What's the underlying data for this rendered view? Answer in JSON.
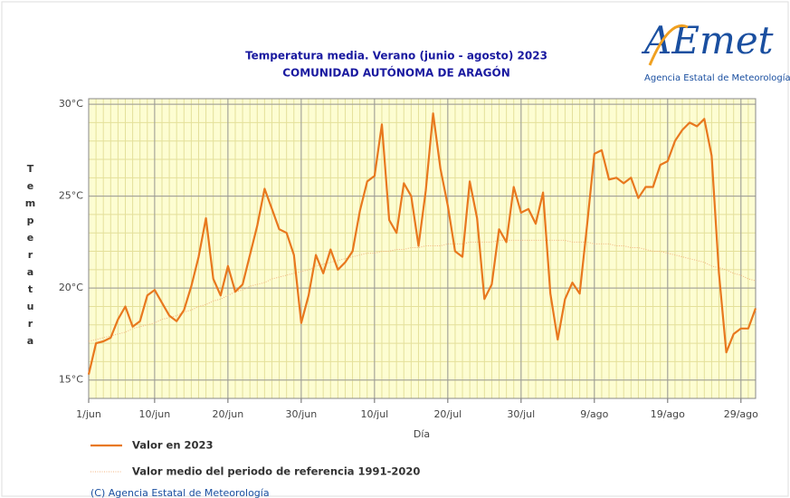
{
  "chart_data": {
    "type": "line",
    "title": "Temperatura media. Verano (junio - agosto) 2023",
    "subtitle": "COMUNIDAD AUTÓNOMA DE ARAGÓN",
    "x_label": "Día",
    "y_label": "Temperatura",
    "categories": [
      "1/jun",
      null,
      null,
      null,
      null,
      null,
      null,
      null,
      null,
      "10/jun",
      null,
      null,
      null,
      null,
      null,
      null,
      null,
      null,
      null,
      "20/jun",
      null,
      null,
      null,
      null,
      null,
      null,
      null,
      null,
      null,
      "30/jun",
      null,
      null,
      null,
      null,
      null,
      null,
      null,
      null,
      null,
      "10/jul",
      null,
      null,
      null,
      null,
      null,
      null,
      null,
      null,
      null,
      "20/jul",
      null,
      null,
      null,
      null,
      null,
      null,
      null,
      null,
      null,
      "30/jul",
      null,
      null,
      null,
      null,
      null,
      null,
      null,
      null,
      null,
      "9/ago",
      null,
      null,
      null,
      null,
      null,
      null,
      null,
      null,
      null,
      "19/ago",
      null,
      null,
      null,
      null,
      null,
      null,
      null,
      null,
      null,
      "29/ago",
      null,
      null
    ],
    "ylim": [
      14,
      30.3
    ],
    "yticks": [
      {
        "value": 15,
        "label": "15°C"
      },
      {
        "value": 20,
        "label": "20°C"
      },
      {
        "value": 25,
        "label": "25°C"
      },
      {
        "value": 30,
        "label": "30°C"
      }
    ],
    "grid": true,
    "series": [
      {
        "name": "Valor en 2023",
        "color": "#e8781e",
        "style": "solid",
        "values": [
          15.3,
          17.0,
          17.1,
          17.3,
          18.3,
          19.0,
          17.9,
          18.2,
          19.6,
          19.9,
          19.2,
          18.5,
          18.2,
          18.8,
          20.1,
          21.7,
          23.8,
          20.5,
          19.6,
          21.2,
          19.8,
          20.2,
          21.8,
          23.4,
          25.4,
          24.3,
          23.2,
          23.0,
          21.8,
          18.1,
          19.6,
          21.8,
          20.8,
          22.1,
          21.0,
          21.4,
          22.0,
          24.2,
          25.8,
          26.1,
          28.9,
          23.7,
          23.0,
          25.7,
          25.0,
          22.3,
          25.3,
          29.5,
          26.5,
          24.5,
          22.0,
          21.7,
          25.8,
          23.8,
          19.4,
          20.2,
          23.2,
          22.5,
          25.5,
          24.1,
          24.3,
          23.5,
          25.2,
          19.7,
          17.2,
          19.4,
          20.3,
          19.7,
          23.4,
          27.3,
          27.5,
          25.9,
          26.0,
          25.7,
          26.0,
          24.9,
          25.5,
          25.5,
          26.7,
          26.9,
          28.0,
          28.6,
          29.0,
          28.8,
          29.2,
          27.2,
          20.8,
          16.5,
          17.5,
          17.8,
          17.8,
          18.9
        ]
      },
      {
        "name": "Valor medio del periodo de referencia 1991-2020",
        "color": "#f2b27c",
        "style": "dotted",
        "values": [
          17.1,
          17.2,
          17.3,
          17.4,
          17.5,
          17.6,
          17.8,
          17.9,
          18.0,
          18.1,
          18.3,
          18.4,
          18.5,
          18.7,
          18.8,
          19.0,
          19.1,
          19.3,
          19.4,
          19.6,
          19.8,
          19.9,
          20.1,
          20.2,
          20.3,
          20.5,
          20.6,
          20.7,
          20.8,
          20.9,
          21.0,
          21.2,
          21.3,
          21.4,
          21.5,
          21.6,
          21.7,
          21.8,
          21.9,
          21.9,
          22.0,
          22.0,
          22.1,
          22.1,
          22.2,
          22.2,
          22.3,
          22.3,
          22.3,
          22.4,
          22.4,
          22.4,
          22.5,
          22.5,
          22.5,
          22.5,
          22.6,
          22.6,
          22.6,
          22.6,
          22.6,
          22.6,
          22.6,
          22.6,
          22.6,
          22.6,
          22.5,
          22.5,
          22.5,
          22.4,
          22.4,
          22.4,
          22.3,
          22.3,
          22.2,
          22.2,
          22.1,
          22.0,
          22.0,
          21.9,
          21.8,
          21.7,
          21.6,
          21.5,
          21.4,
          21.2,
          21.1,
          21.0,
          20.8,
          20.7,
          20.5,
          20.4
        ]
      }
    ]
  },
  "logo": {
    "text": "AEmet",
    "tagline": "Agencia Estatal de Meteorología"
  },
  "copyright": "(C) Agencia Estatal de Meteorología"
}
